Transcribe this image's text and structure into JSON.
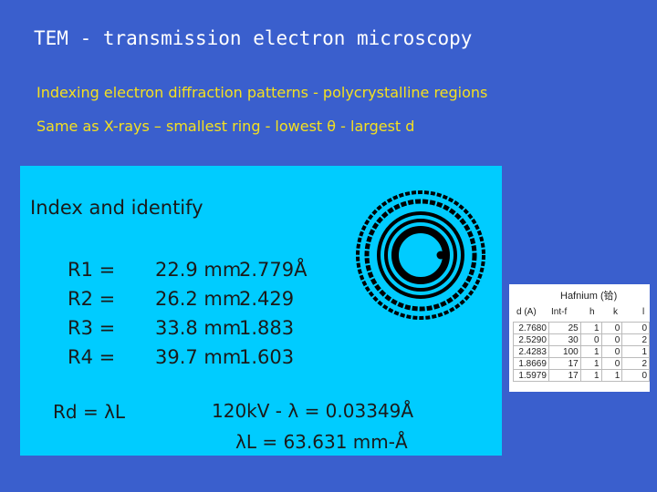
{
  "title": "TEM - transmission electron microscopy",
  "subtitle": "Indexing electron diffraction patterns - polycrystalline regions",
  "subtitle2": "Same as X-rays – smallest ring - lowest θ - largest d",
  "panel": {
    "heading": "Index and identify",
    "rings": [
      {
        "name": "R1 =",
        "value": "22.9 mm",
        "d": "2.779Å"
      },
      {
        "name": "R2 =",
        "value": "26.2 mm",
        "d": "2.429"
      },
      {
        "name": "R3 =",
        "value": "33.8 mm",
        "d": "1.883"
      },
      {
        "name": "R4 =",
        "value": "39.7 mm",
        "d": "1.603"
      }
    ],
    "formula": "Rd = λL",
    "voltage_line": "120kV - λ = 0.03349Å",
    "camera_line": "λL = 63.631 mm-Å"
  },
  "reference": {
    "title": "Hafnium (铪)",
    "columns": [
      "d (A)",
      "Int-f",
      "h",
      "k",
      "l"
    ],
    "rows": [
      [
        "2.7680",
        "25",
        "1",
        "0",
        "0"
      ],
      [
        "2.5290",
        "30",
        "0",
        "0",
        "2"
      ],
      [
        "2.4283",
        "100",
        "1",
        "0",
        "1"
      ],
      [
        "1.8669",
        "17",
        "1",
        "0",
        "2"
      ],
      [
        "1.5979",
        "17",
        "1",
        "1",
        "0"
      ]
    ]
  },
  "colors": {
    "background": "#3a5fcd",
    "panel": "#00ccff",
    "subtitle": "#f4e020",
    "title": "#ffffff"
  }
}
